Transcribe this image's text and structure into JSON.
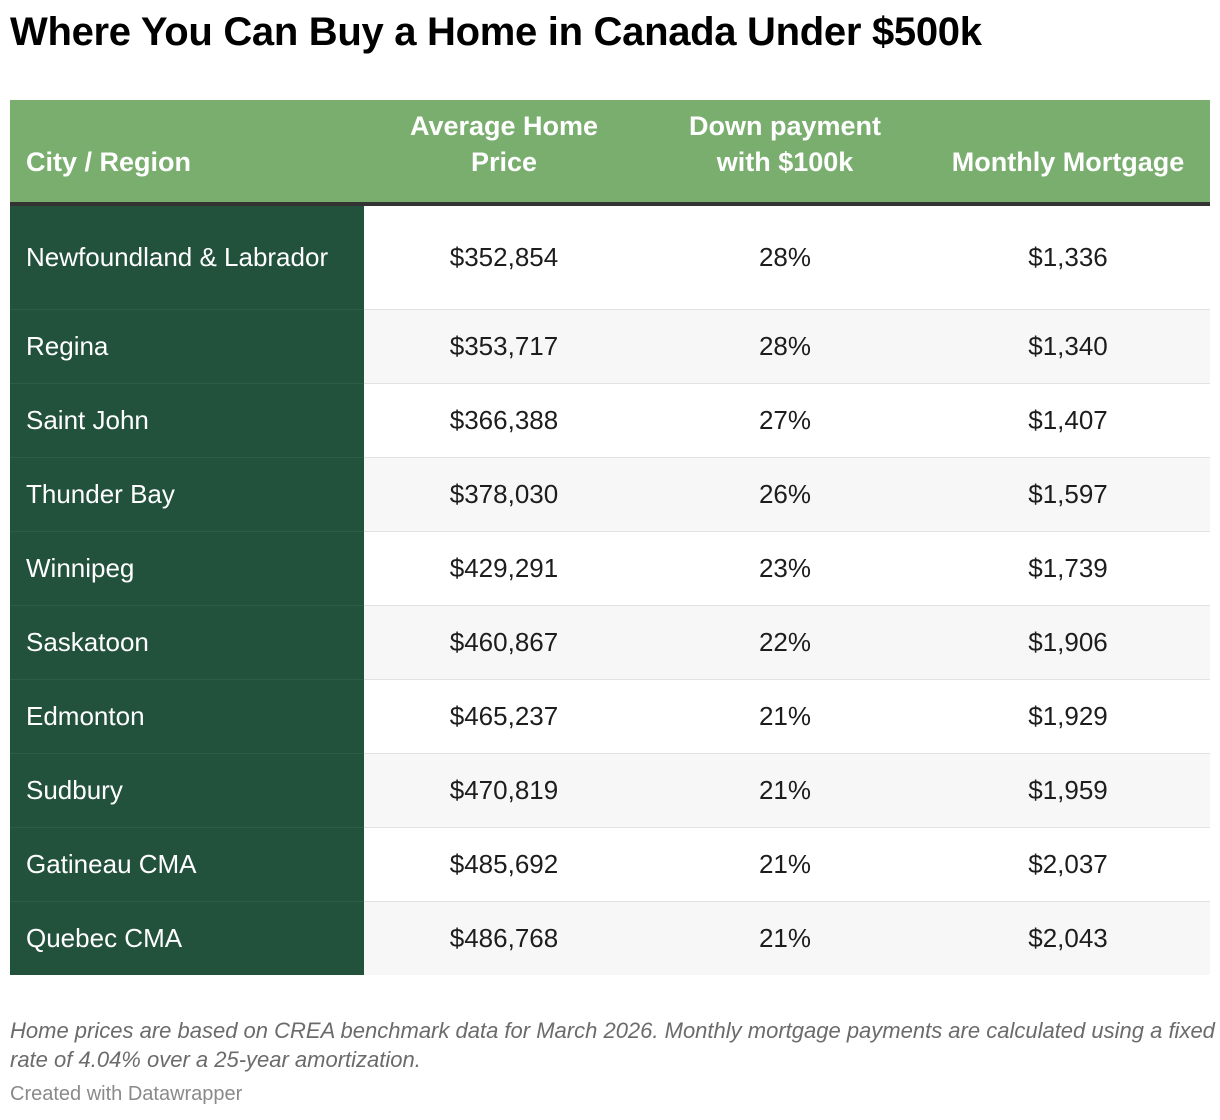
{
  "title": "Where You Can Buy a Home in Canada Under $500k",
  "chart_data": {
    "type": "table",
    "columns": [
      "City / Region",
      "Average Home Price",
      "Down payment with $100k",
      "Monthly Mortgage"
    ],
    "rows": [
      [
        "Newfoundland & Labrador",
        "$352,854",
        "28%",
        "$1,336"
      ],
      [
        "Regina",
        "$353,717",
        "28%",
        "$1,340"
      ],
      [
        "Saint John",
        "$366,388",
        "27%",
        "$1,407"
      ],
      [
        "Thunder Bay",
        "$378,030",
        "26%",
        "$1,597"
      ],
      [
        "Winnipeg",
        "$429,291",
        "23%",
        "$1,739"
      ],
      [
        "Saskatoon",
        "$460,867",
        "22%",
        "$1,906"
      ],
      [
        "Edmonton",
        "$465,237",
        "21%",
        "$1,929"
      ],
      [
        "Sudbury",
        "$470,819",
        "21%",
        "$1,959"
      ],
      [
        "Gatineau CMA",
        "$485,692",
        "21%",
        "$2,037"
      ],
      [
        "Quebec CMA",
        "$486,768",
        "21%",
        "$2,043"
      ]
    ]
  },
  "notes": "Home prices are based on CREA benchmark data for March 2026. Monthly mortgage payments are calculated using a fixed rate of 4.04% over a 25-year amortization.",
  "credit": "Created with Datawrapper",
  "colors": {
    "header_bg": "#7aae6f",
    "city_column_bg": "#22513c",
    "alt_row_bg": "#f7f7f7"
  }
}
